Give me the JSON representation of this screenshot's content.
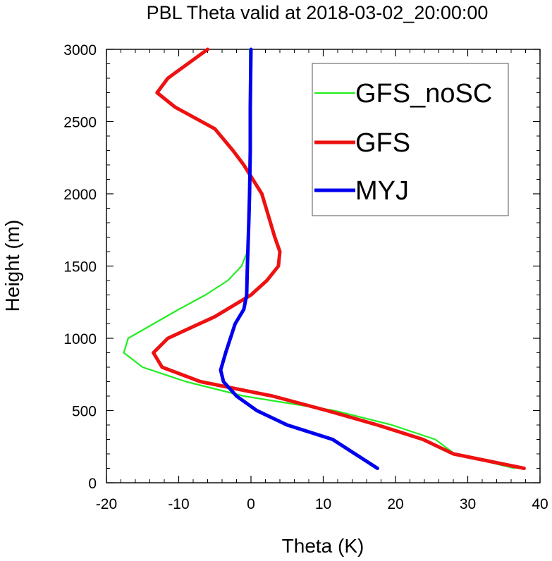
{
  "chart_data": {
    "type": "line",
    "title": "PBL Theta valid at 2018-03-02_20:00:00",
    "xlabel": "Theta (K)",
    "ylabel": "Height (m)",
    "xlim": [
      -20,
      40
    ],
    "ylim": [
      0,
      3000
    ],
    "xticks": [
      -20,
      -10,
      0,
      10,
      20,
      30,
      40
    ],
    "yticks": [
      0,
      500,
      1000,
      1500,
      2000,
      2500,
      3000
    ],
    "grid": false,
    "legend_position": "top-right",
    "series": [
      {
        "name": "GFS_noSC",
        "color": "#22ee22",
        "points": [
          [
            36.5,
            100
          ],
          [
            28.2,
            200
          ],
          [
            25.5,
            300
          ],
          [
            19.5,
            400
          ],
          [
            11.5,
            500
          ],
          [
            -1.0,
            600
          ],
          [
            -9.0,
            700
          ],
          [
            -15.0,
            800
          ],
          [
            -17.6,
            900
          ],
          [
            -17.0,
            1000
          ],
          [
            -10.0,
            1200
          ],
          [
            -6.3,
            1300
          ],
          [
            -3.2,
            1400
          ],
          [
            -1.3,
            1500
          ],
          [
            -0.5,
            1600
          ],
          [
            -0.3,
            1800
          ],
          [
            -0.2,
            2000
          ],
          [
            -0.1,
            2500
          ],
          [
            -0.2,
            3000
          ]
        ]
      },
      {
        "name": "GFS",
        "color": "#ee1111",
        "points": [
          [
            37.8,
            100
          ],
          [
            28.0,
            200
          ],
          [
            23.8,
            300
          ],
          [
            17.5,
            400
          ],
          [
            10.5,
            500
          ],
          [
            3.0,
            600
          ],
          [
            -7.0,
            700
          ],
          [
            -12.3,
            800
          ],
          [
            -13.5,
            900
          ],
          [
            -11.5,
            1000
          ],
          [
            -5.0,
            1150
          ],
          [
            0.0,
            1300
          ],
          [
            2.2,
            1400
          ],
          [
            3.8,
            1500
          ],
          [
            4.0,
            1600
          ],
          [
            3.3,
            1700
          ],
          [
            1.5,
            2000
          ],
          [
            -1.0,
            2200
          ],
          [
            -2.5,
            2300
          ],
          [
            -5.0,
            2450
          ],
          [
            -10.5,
            2600
          ],
          [
            -13.0,
            2700
          ],
          [
            -11.5,
            2800
          ],
          [
            -6.0,
            3000
          ]
        ]
      },
      {
        "name": "MYJ",
        "color": "#0000ee",
        "points": [
          [
            17.5,
            100
          ],
          [
            11.3,
            300
          ],
          [
            5.0,
            400
          ],
          [
            0.8,
            500
          ],
          [
            -2.0,
            600
          ],
          [
            -3.8,
            700
          ],
          [
            -4.2,
            780
          ],
          [
            -3.5,
            900
          ],
          [
            -2.2,
            1100
          ],
          [
            -1.0,
            1200
          ],
          [
            -0.6,
            1300
          ],
          [
            -0.5,
            1500
          ],
          [
            -0.3,
            1800
          ],
          [
            -0.2,
            2000
          ],
          [
            -0.1,
            2300
          ],
          [
            -0.1,
            2600
          ],
          [
            0.0,
            3000
          ]
        ]
      }
    ]
  }
}
